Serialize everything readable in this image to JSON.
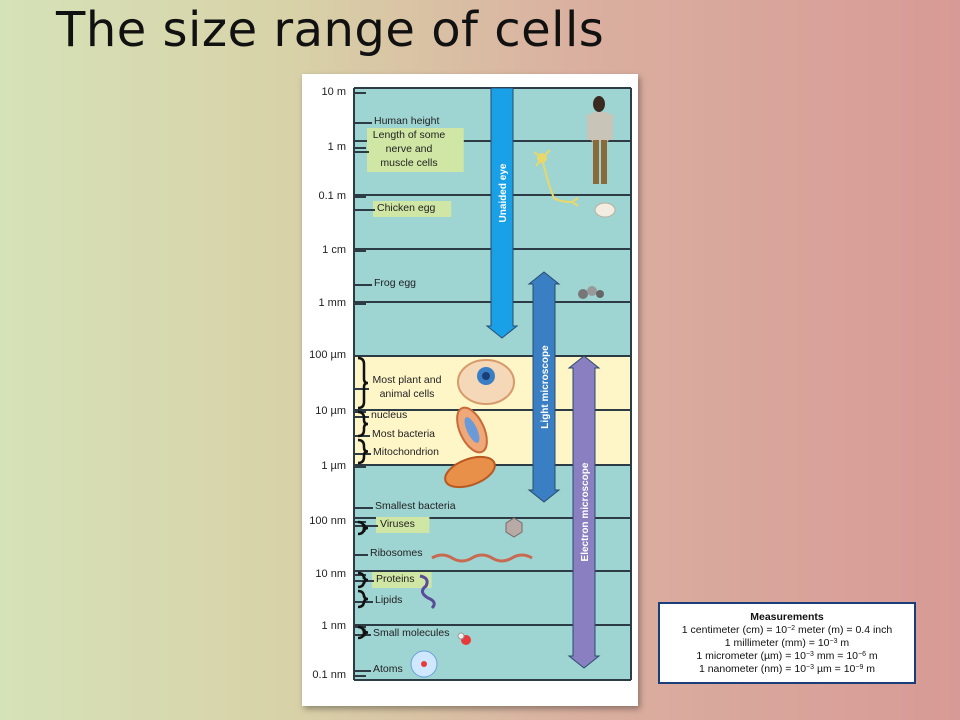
{
  "title": "The size range of cells",
  "scale_labels": [
    "10 m",
    "1 m",
    "0.1 m",
    "1 cm",
    "1 mm",
    "100 µm",
    "10 µm",
    "1 µm",
    "100 nm",
    "10 nm",
    "1 nm",
    "0.1 nm"
  ],
  "items": [
    {
      "lines": [
        "Human height"
      ],
      "highlight": false
    },
    {
      "lines": [
        "Length of some",
        "nerve and",
        "muscle cells"
      ],
      "highlight": true
    },
    {
      "lines": [
        "Chicken egg"
      ],
      "highlight": true
    },
    {
      "lines": [
        "Frog egg"
      ],
      "highlight": false
    },
    {
      "lines": [
        "Most plant and",
        "animal cells"
      ],
      "highlight": false
    },
    {
      "lines": [
        "nucleus"
      ],
      "highlight": false
    },
    {
      "lines": [
        "Most bacteria"
      ],
      "highlight": false
    },
    {
      "lines": [
        "Mitochondrion"
      ],
      "highlight": false
    },
    {
      "lines": [
        "Smallest bacteria"
      ],
      "highlight": false
    },
    {
      "lines": [
        "Viruses"
      ],
      "highlight": true
    },
    {
      "lines": [
        "Ribosomes"
      ],
      "highlight": false
    },
    {
      "lines": [
        "Proteins"
      ],
      "highlight": true
    },
    {
      "lines": [
        "Lipids"
      ],
      "highlight": false
    },
    {
      "lines": [
        "Small molecules"
      ],
      "highlight": false
    },
    {
      "lines": [
        "Atoms"
      ],
      "highlight": false
    }
  ],
  "arrows": [
    {
      "label": "Unaided eye",
      "color": "#1aa0e6"
    },
    {
      "label": "Light microscope",
      "color": "#3a7fc4"
    },
    {
      "label": "Electron microscope",
      "color": "#8a7fc0"
    }
  ],
  "measurements": {
    "heading": "Measurements",
    "cm": {
      "pre": "1 centimeter (cm) = 10",
      "exp": "−2",
      "post": " meter (m) = 0.4 inch"
    },
    "mm": {
      "pre": "1 millimeter (mm) = 10",
      "exp": "−3",
      "post": " m"
    },
    "um": {
      "pre": "1 micrometer (µm) = 10",
      "exp1": "−3",
      "mid": " mm = 10",
      "exp2": "−6",
      "post": " m"
    },
    "nm": {
      "pre": "1 nanometer (nm) = 10",
      "exp1": "−3",
      "mid": " µm = 10",
      "exp2": "−9",
      "post": " m"
    }
  },
  "colors": {
    "scale_bg": "#9ed4d2",
    "cell_band": "#fff6c8",
    "highlight": "#cfe6a4",
    "line": "#2d3b45"
  }
}
